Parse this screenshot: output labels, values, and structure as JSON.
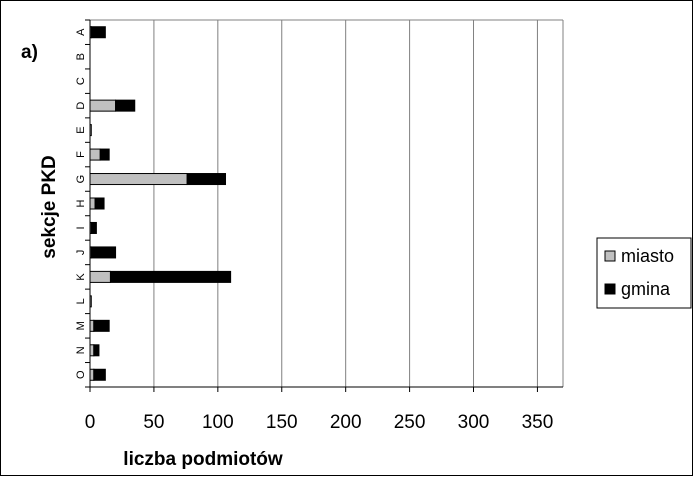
{
  "chart_data": {
    "type": "bar",
    "orientation": "horizontal",
    "stacked": true,
    "panel_label": "a)",
    "xlabel": "liczba podmiotów",
    "ylabel": "sekcje PKD",
    "xlim": [
      0,
      370
    ],
    "xticks": [
      0,
      50,
      100,
      150,
      200,
      250,
      300,
      350
    ],
    "grid": true,
    "legend_position": "right",
    "categories": [
      "A",
      "B",
      "C",
      "D",
      "E",
      "F",
      "G",
      "H",
      "I",
      "J",
      "K",
      "L",
      "M",
      "N",
      "O"
    ],
    "series": [
      {
        "name": "miasto",
        "color": "#c0c0c0",
        "values": [
          1,
          0,
          0,
          20,
          1,
          8,
          76,
          4,
          1,
          1,
          16,
          1,
          3,
          3,
          3
        ]
      },
      {
        "name": "gmina",
        "color": "#000000",
        "values": [
          11,
          0,
          0,
          15,
          0,
          7,
          30,
          7,
          4,
          19,
          94,
          0,
          12,
          4,
          9
        ]
      }
    ]
  }
}
